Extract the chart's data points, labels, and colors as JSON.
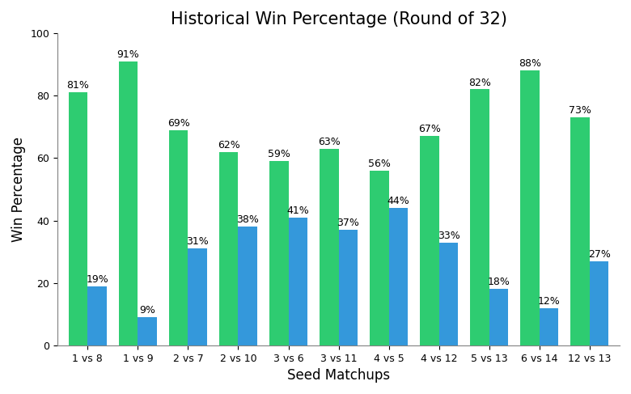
{
  "title": "Historical Win Percentage (Round of 32)",
  "xlabel": "Seed Matchups",
  "ylabel": "Win Percentage",
  "matchups": [
    "1 vs 8",
    "1 vs 9",
    "2 vs 7",
    "2 vs 10",
    "3 vs 6",
    "3 vs 11",
    "4 vs 5",
    "4 vs 12",
    "5 vs 13",
    "6 vs 14",
    "12 vs 13"
  ],
  "higher_seed_pct": [
    81,
    91,
    69,
    62,
    59,
    63,
    56,
    67,
    82,
    88,
    73
  ],
  "lower_seed_pct": [
    19,
    9,
    31,
    38,
    41,
    37,
    44,
    33,
    18,
    12,
    27
  ],
  "bar_color_higher": "#2ecc71",
  "bar_color_lower": "#3498db",
  "ylim": [
    0,
    100
  ],
  "yticks": [
    0,
    20,
    40,
    60,
    80,
    100
  ],
  "bar_width": 0.38,
  "title_fontsize": 15,
  "label_fontsize": 12,
  "tick_fontsize": 9,
  "annotation_fontsize": 9,
  "background_color": "#ffffff"
}
